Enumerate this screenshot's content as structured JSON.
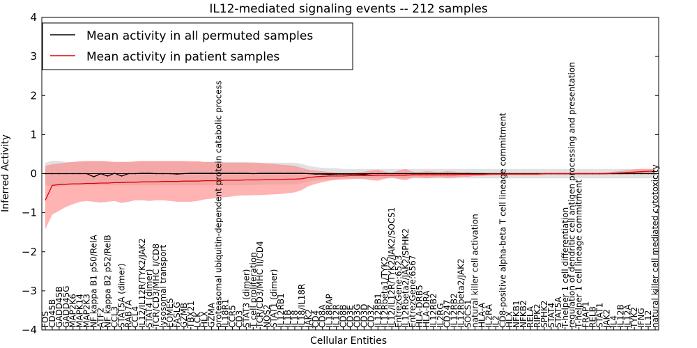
{
  "chart_data": {
    "type": "line",
    "title": "IL12-mediated signaling events -- 212 samples",
    "xlabel": "Cellular Entities",
    "ylabel": "Inferred Activity",
    "ylim": [
      -4,
      4
    ],
    "yticks": [
      4,
      3,
      2,
      1,
      0,
      -1,
      -2,
      -3,
      -4
    ],
    "ytick_labels": [
      "4",
      "3",
      "2",
      "1",
      "0",
      "−1",
      "−2",
      "−3",
      "−4"
    ],
    "grid": false,
    "legend_position": "top-left",
    "categories": [
      "FOS",
      "CD45B",
      "GADD45B",
      "GADD45G",
      "MAP2K6",
      "MAPK14",
      "MAP2K3",
      "NF kappa B1 p50/RelA",
      "ATF2",
      "NF kappa B2 p52/RelB",
      "CCL3",
      "STAT5A (dimer)",
      "RAB7A",
      "CCL4",
      "IL12/IL12R/TYK2/JAK2",
      "STAT4 (dimer)",
      "TCR/CD3/MHC I/CD8",
      "lysosomal transport",
      "EOMES",
      "FASLG",
      "GZMB",
      "TBX21",
      "LCK",
      "HLX",
      "GZMA",
      "proteasomal ubiquitin-dependent protein catabolic process",
      "IL18R1",
      "CCR5",
      "CD3",
      "STAT3 (dimer)",
      "T cell proliferation",
      "TCR/CD3/MHC II/CD4",
      "NOS2",
      "STAT1 (dimer)",
      "IL12RB1",
      "IL1B",
      "IL18",
      "IL18/IL18R",
      "JAK2",
      "CD4",
      "CD8A",
      "IL18RAP",
      "IL12R",
      "CD8B",
      "CD3E",
      "CD3G",
      "CD3D",
      "CD3Z",
      "IL12RB1",
      "IL12Rbeta1/TYK2",
      "IL12/IL12R/TYK2/JAK2/SOCS1",
      "EntrezGene:6523",
      "IL12Rbeta2/JAK2/SPHK2",
      "EntrezGene:6567",
      "HLA-DRB5",
      "HLA-DRA",
      "IL12RB2",
      "IL2RG",
      "CD247",
      "IL12RB2",
      "IL12Rbeta2/JAK2",
      "SOCS1",
      "natural killer cell activation",
      "HLA-A",
      "IL2RA",
      "IL2",
      "CD8-positive alpha-beta T cell lineage commitment",
      "HLX",
      "NFKB1",
      "NFKB2",
      "RELA",
      "RIPK2",
      "SPHK2",
      "STAT4",
      "STAT5A",
      "T-helper 1 cell differentiation",
      "regulation of dendritic cell antigen processing and presentation",
      "T-helper 1 cell lineage commitment",
      "FRAP1",
      "RELB",
      "STAT1",
      "JAK2",
      "IL4",
      "IL12B",
      "IL12A",
      "TYK2",
      "IFNG",
      "IL12",
      "natural killer cell mediated cytotoxicity"
    ],
    "series": [
      {
        "name": "Mean activity in all permuted samples",
        "color": "#000000",
        "band_color": "#c8c8c8",
        "values": [
          0.0,
          0.0,
          0.0,
          0.0,
          0.0,
          0.0,
          0.0,
          -0.08,
          0.0,
          -0.06,
          0.01,
          -0.06,
          0.0,
          0.0,
          0.01,
          0.01,
          0.0,
          0.0,
          0.0,
          -0.01,
          0.0,
          0.01,
          0.01,
          0.01,
          0.01,
          0.01,
          0.01,
          0.01,
          0.01,
          0.01,
          0.0,
          0.01,
          0.01,
          0.01,
          0.01,
          0.01,
          0.01,
          0.01,
          0.0,
          -0.01,
          -0.01,
          -0.02,
          -0.01,
          -0.01,
          -0.01,
          -0.01,
          -0.02,
          0.0,
          0.0,
          0.0,
          0.0,
          0.0,
          0.0,
          0.0,
          0.0,
          0.0,
          0.0,
          0.0,
          0.0,
          0.0,
          0.0,
          0.0,
          0.0,
          0.0,
          0.0,
          0.0,
          0.0,
          0.0,
          0.0,
          0.0,
          0.0,
          0.0,
          0.0,
          0.0,
          0.0,
          0.0,
          0.0,
          0.0,
          0.0,
          0.0,
          0.0,
          0.0,
          0.0,
          0.0,
          0.0,
          0.0,
          0.0,
          0.0,
          0.0
        ],
        "upper": [
          0.28,
          0.33,
          0.33,
          0.3,
          0.3,
          0.3,
          0.3,
          0.3,
          0.3,
          0.3,
          0.3,
          0.3,
          0.3,
          0.3,
          0.3,
          0.3,
          0.3,
          0.3,
          0.3,
          0.3,
          0.3,
          0.3,
          0.3,
          0.3,
          0.3,
          0.3,
          0.3,
          0.3,
          0.3,
          0.3,
          0.3,
          0.28,
          0.28,
          0.28,
          0.28,
          0.28,
          0.28,
          0.25,
          0.2,
          0.17,
          0.15,
          0.14,
          0.14,
          0.12,
          0.12,
          0.12,
          0.12,
          0.12,
          0.12,
          0.12,
          0.12,
          0.12,
          0.12,
          0.12,
          0.12,
          0.12,
          0.12,
          0.12,
          0.12,
          0.12,
          0.12,
          0.12,
          0.12,
          0.12,
          0.12,
          0.12,
          0.12,
          0.12,
          0.12,
          0.12,
          0.12,
          0.12,
          0.12,
          0.12,
          0.12,
          0.12,
          0.12,
          0.12,
          0.12,
          0.12,
          0.12,
          0.12,
          0.12,
          0.12,
          0.12,
          0.12,
          0.12,
          0.12,
          0.12
        ],
        "lower": [
          -0.28,
          -0.33,
          -0.33,
          -0.3,
          -0.3,
          -0.3,
          -0.3,
          -0.3,
          -0.3,
          -0.3,
          -0.3,
          -0.3,
          -0.3,
          -0.3,
          -0.3,
          -0.3,
          -0.3,
          -0.3,
          -0.3,
          -0.3,
          -0.3,
          -0.3,
          -0.3,
          -0.3,
          -0.3,
          -0.3,
          -0.3,
          -0.3,
          -0.3,
          -0.3,
          -0.3,
          -0.28,
          -0.28,
          -0.28,
          -0.28,
          -0.28,
          -0.28,
          -0.25,
          -0.2,
          -0.17,
          -0.15,
          -0.14,
          -0.14,
          -0.12,
          -0.12,
          -0.12,
          -0.12,
          -0.12,
          -0.12,
          -0.12,
          -0.12,
          -0.12,
          -0.12,
          -0.12,
          -0.12,
          -0.12,
          -0.12,
          -0.12,
          -0.12,
          -0.12,
          -0.12,
          -0.12,
          -0.12,
          -0.12,
          -0.12,
          -0.12,
          -0.12,
          -0.12,
          -0.12,
          -0.12,
          -0.12,
          -0.12,
          -0.12,
          -0.12,
          -0.12,
          -0.12,
          -0.12,
          -0.12,
          -0.12,
          -0.12,
          -0.12,
          -0.12,
          -0.12,
          -0.12,
          -0.12,
          -0.12,
          -0.12,
          -0.12,
          -0.12
        ]
      },
      {
        "name": "Mean activity in patient samples",
        "color": "#e00000",
        "band_color": "#ff8080",
        "values": [
          -0.68,
          -0.3,
          -0.28,
          -0.27,
          -0.26,
          -0.26,
          -0.25,
          -0.25,
          -0.24,
          -0.24,
          -0.23,
          -0.23,
          -0.22,
          -0.22,
          -0.21,
          -0.21,
          -0.21,
          -0.2,
          -0.2,
          -0.2,
          -0.19,
          -0.19,
          -0.19,
          -0.18,
          -0.18,
          -0.18,
          -0.17,
          -0.17,
          -0.17,
          -0.16,
          -0.16,
          -0.16,
          -0.15,
          -0.15,
          -0.15,
          -0.14,
          -0.14,
          -0.13,
          -0.1,
          -0.08,
          -0.07,
          -0.06,
          -0.06,
          -0.06,
          -0.05,
          -0.05,
          -0.05,
          -0.05,
          -0.04,
          -0.04,
          -0.04,
          -0.04,
          -0.04,
          -0.03,
          -0.03,
          -0.03,
          -0.03,
          -0.03,
          -0.03,
          -0.03,
          -0.02,
          -0.02,
          -0.02,
          -0.02,
          -0.01,
          -0.01,
          -0.01,
          -0.01,
          -0.01,
          -0.01,
          -0.01,
          -0.01,
          0.0,
          0.0,
          0.0,
          0.0,
          0.0,
          0.0,
          0.0,
          0.0,
          0.0,
          0.0,
          0.01,
          0.02,
          0.03,
          0.04,
          0.05,
          0.06,
          0.06
        ],
        "upper": [
          0.2,
          0.24,
          0.26,
          0.28,
          0.3,
          0.32,
          0.33,
          0.33,
          0.33,
          0.32,
          0.3,
          0.3,
          0.3,
          0.32,
          0.33,
          0.33,
          0.33,
          0.33,
          0.33,
          0.33,
          0.33,
          0.32,
          0.32,
          0.3,
          0.3,
          0.3,
          0.28,
          0.28,
          0.28,
          0.28,
          0.27,
          0.27,
          0.26,
          0.25,
          0.23,
          0.22,
          0.2,
          0.15,
          0.1,
          0.08,
          0.06,
          0.04,
          0.03,
          0.02,
          0.02,
          0.03,
          0.05,
          0.08,
          0.1,
          0.05,
          0.02,
          0.08,
          0.12,
          0.05,
          0.04,
          0.06,
          0.05,
          0.04,
          0.06,
          0.05,
          0.03,
          0.04,
          0.02,
          0.02,
          0.02,
          0.02,
          0.02,
          0.02,
          0.02,
          0.02,
          0.02,
          0.02,
          0.02,
          0.02,
          0.02,
          0.02,
          0.02,
          0.02,
          0.02,
          0.02,
          0.02,
          0.03,
          0.05,
          0.07,
          0.09,
          0.11,
          0.12,
          0.12,
          0.12
        ],
        "lower": [
          -1.42,
          -1.05,
          -0.95,
          -0.85,
          -0.78,
          -0.72,
          -0.7,
          -0.72,
          -0.74,
          -0.72,
          -0.7,
          -0.75,
          -0.72,
          -0.68,
          -0.68,
          -0.7,
          -0.68,
          -0.68,
          -0.7,
          -0.72,
          -0.72,
          -0.72,
          -0.7,
          -0.66,
          -0.64,
          -0.62,
          -0.6,
          -0.58,
          -0.56,
          -0.56,
          -0.55,
          -0.55,
          -0.54,
          -0.53,
          -0.52,
          -0.5,
          -0.48,
          -0.42,
          -0.32,
          -0.26,
          -0.22,
          -0.18,
          -0.16,
          -0.15,
          -0.14,
          -0.13,
          -0.14,
          -0.17,
          -0.18,
          -0.13,
          -0.1,
          -0.14,
          -0.17,
          -0.1,
          -0.1,
          -0.12,
          -0.1,
          -0.09,
          -0.11,
          -0.1,
          -0.08,
          -0.08,
          -0.06,
          -0.06,
          -0.05,
          -0.04,
          -0.04,
          -0.04,
          -0.04,
          -0.04,
          -0.04,
          -0.04,
          -0.03,
          -0.03,
          -0.03,
          -0.03,
          -0.03,
          -0.03,
          -0.03,
          -0.03,
          -0.03,
          -0.02,
          -0.02,
          -0.02,
          -0.01,
          -0.01,
          0.0,
          0.0,
          0.0
        ]
      }
    ]
  }
}
